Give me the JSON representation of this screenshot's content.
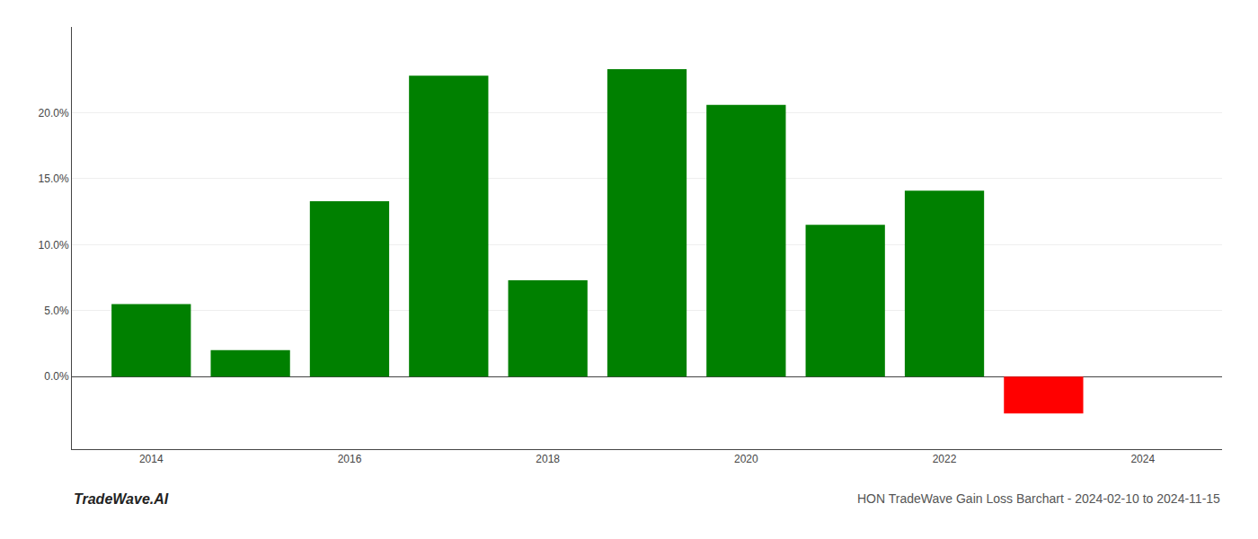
{
  "chart_data": {
    "type": "bar",
    "title": "HON TradeWave Gain Loss Barchart - 2024-02-10 to 2024-11-15",
    "annotations": [
      "TradeWave.AI"
    ],
    "x": [
      2014,
      2015,
      2016,
      2017,
      2018,
      2019,
      2020,
      2021,
      2022,
      2023
    ],
    "values": [
      0.055,
      0.02,
      0.133,
      0.228,
      0.073,
      0.233,
      0.206,
      0.115,
      0.141,
      -0.028
    ],
    "colors": [
      "#008000",
      "#008000",
      "#008000",
      "#008000",
      "#008000",
      "#008000",
      "#008000",
      "#008000",
      "#008000",
      "#ff0000"
    ],
    "xlim": [
      2013.2,
      2024.8
    ],
    "xticks": [
      2014,
      2016,
      2018,
      2020,
      2022,
      2024
    ],
    "ylim": [
      -0.055,
      0.265
    ],
    "yticks": [
      {
        "value": 0.0,
        "label": "0.0%"
      },
      {
        "value": 0.05,
        "label": "5.0%"
      },
      {
        "value": 0.1,
        "label": "10.0%"
      },
      {
        "value": 0.15,
        "label": "15.0%"
      },
      {
        "value": 0.2,
        "label": "20.0%"
      }
    ],
    "grid": true
  }
}
